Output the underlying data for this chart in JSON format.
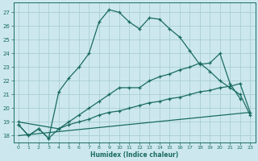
{
  "xlabel": "Humidex (Indice chaleur)",
  "bg_color": "#cce8ee",
  "grid_color": "#aacdd6",
  "line_color": "#1a6b60",
  "xlim": [
    -0.5,
    23.5
  ],
  "ylim": [
    17.5,
    27.7
  ],
  "xticks": [
    0,
    1,
    2,
    3,
    4,
    5,
    6,
    7,
    8,
    9,
    10,
    11,
    12,
    13,
    14,
    15,
    16,
    17,
    18,
    19,
    20,
    21,
    22,
    23
  ],
  "yticks": [
    18,
    19,
    20,
    21,
    22,
    23,
    24,
    25,
    26,
    27
  ],
  "line1_x": [
    0,
    1,
    2,
    3,
    4,
    5,
    6,
    7,
    8,
    9,
    10,
    11,
    12,
    13,
    14,
    15,
    16,
    17,
    18,
    19,
    20,
    21,
    22
  ],
  "line1_y": [
    18.8,
    18.0,
    18.5,
    17.8,
    21.2,
    22.2,
    23.0,
    24.0,
    26.3,
    27.2,
    27.0,
    26.3,
    25.8,
    26.6,
    26.5,
    25.8,
    25.2,
    24.2,
    23.2,
    23.3,
    24.0,
    21.8,
    20.7
  ],
  "line2_x": [
    0,
    1,
    2,
    3,
    4,
    5,
    6,
    7,
    8,
    9,
    10,
    11,
    12,
    13,
    14,
    15,
    16,
    17,
    18,
    19,
    20,
    21,
    22,
    23
  ],
  "line2_y": [
    18.8,
    18.0,
    18.5,
    17.8,
    18.5,
    19.0,
    19.5,
    20.0,
    20.5,
    21.0,
    21.5,
    21.5,
    21.5,
    22.0,
    22.3,
    22.5,
    22.8,
    23.0,
    23.3,
    22.7,
    22.0,
    21.5,
    21.0,
    19.5
  ],
  "line3_x": [
    0,
    4,
    5,
    6,
    7,
    8,
    9,
    10,
    11,
    12,
    13,
    14,
    15,
    16,
    17,
    18,
    19,
    20,
    21,
    22,
    23
  ],
  "line3_y": [
    19.0,
    18.5,
    18.8,
    19.0,
    19.2,
    19.5,
    19.7,
    19.8,
    20.0,
    20.2,
    20.4,
    20.5,
    20.7,
    20.8,
    21.0,
    21.2,
    21.3,
    21.5,
    21.6,
    21.8,
    19.7
  ],
  "line4_x": [
    0,
    23
  ],
  "line4_y": [
    18.0,
    19.7
  ]
}
